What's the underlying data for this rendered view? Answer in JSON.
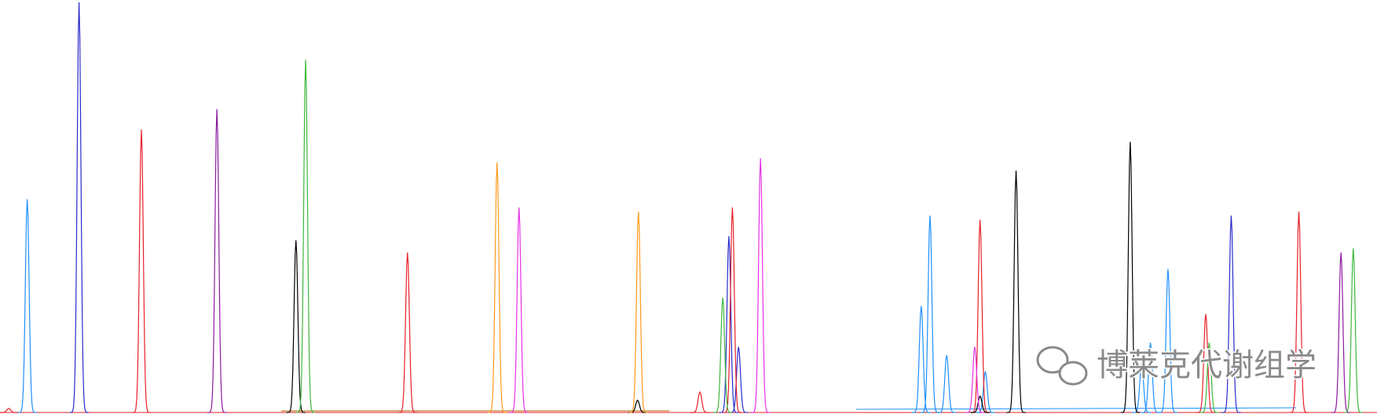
{
  "chart_data": {
    "type": "line",
    "xlim": [
      0,
      1568
    ],
    "ylim": [
      0,
      100
    ],
    "annotations": [
      "博莱克代谢组学"
    ],
    "series": [
      {
        "color": "#1e90ff",
        "x": [
          31,
          1049,
          1059,
          1078,
          1122,
          1300,
          1310,
          1330
        ],
        "values": [
          52,
          26,
          48,
          14,
          10,
          12,
          17,
          35
        ]
      },
      {
        "color": "#2b2bcc",
        "x": [
          90,
          830,
          841,
          1402
        ],
        "values": [
          100,
          43,
          16,
          48
        ]
      },
      {
        "color": "#e8202a",
        "x": [
          10,
          161,
          464,
          797,
          834,
          1116,
          1373,
          1479
        ],
        "values": [
          1,
          69,
          39,
          5,
          50,
          47,
          24,
          49
        ]
      },
      {
        "color": "#8b1a9e",
        "x": [
          247,
          1527
        ],
        "values": [
          74,
          39
        ]
      },
      {
        "color": "#000000",
        "x": [
          337,
          726,
          1116,
          1157,
          1287
        ],
        "values": [
          42,
          3,
          4,
          59,
          66
        ]
      },
      {
        "color": "#3cb83c",
        "x": [
          348,
          823,
          1377,
          1541
        ],
        "values": [
          86,
          28,
          17,
          40
        ]
      },
      {
        "color": "#ff9a1a",
        "x": [
          566,
          727
        ],
        "values": [
          61,
          49
        ]
      },
      {
        "color": "#e632e6",
        "x": [
          591,
          866,
          1110
        ],
        "values": [
          50,
          62,
          16
        ]
      }
    ]
  }
}
